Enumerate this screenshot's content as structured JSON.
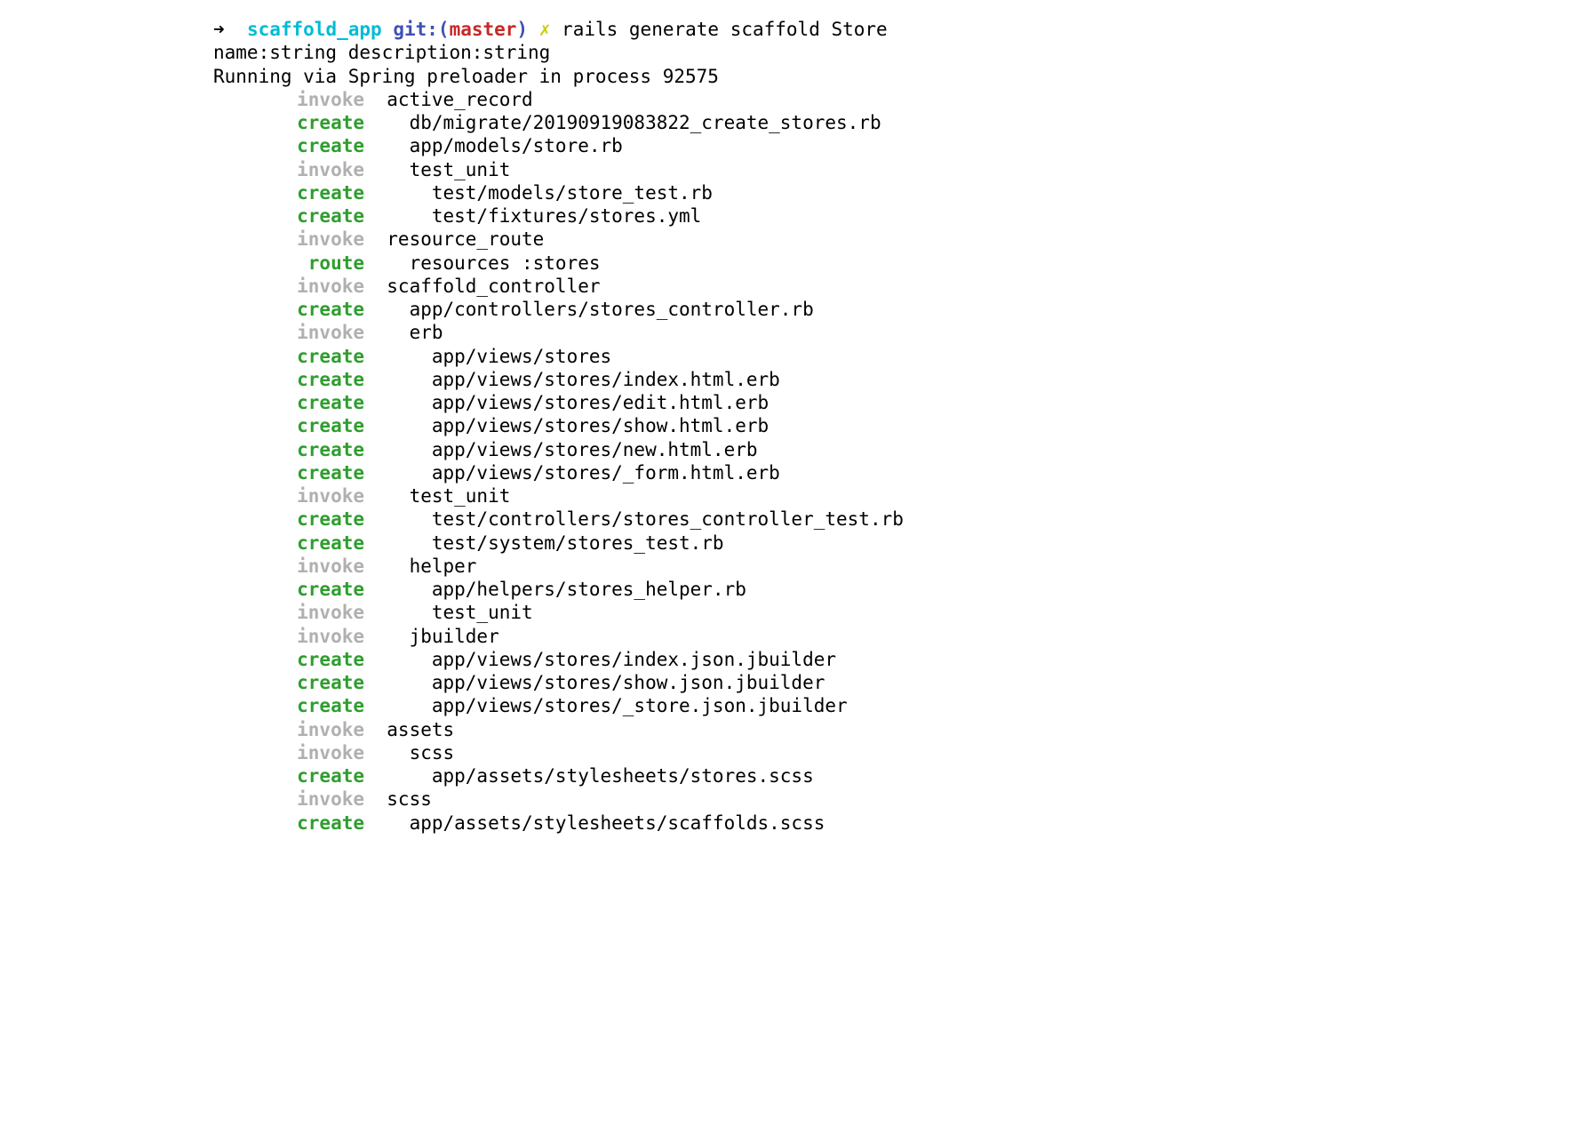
{
  "prompt": {
    "arrow": "➜",
    "app_name": "scaffold_app",
    "git_label": "git:",
    "paren_open": "(",
    "branch": "master",
    "paren_close": ")",
    "dirty_mark": "✗",
    "command_part1": "rails generate scaffold Store",
    "command_part2": "name:string description:string"
  },
  "running_line": "Running via Spring preloader in process 92575",
  "lines": [
    {
      "action": "invoke",
      "path": "  active_record"
    },
    {
      "action": "create",
      "path": "    db/migrate/20190919083822_create_stores.rb"
    },
    {
      "action": "create",
      "path": "    app/models/store.rb"
    },
    {
      "action": "invoke",
      "path": "    test_unit"
    },
    {
      "action": "create",
      "path": "      test/models/store_test.rb"
    },
    {
      "action": "create",
      "path": "      test/fixtures/stores.yml"
    },
    {
      "action": "invoke",
      "path": "  resource_route"
    },
    {
      "action": "route",
      "path": "    resources :stores"
    },
    {
      "action": "invoke",
      "path": "  scaffold_controller"
    },
    {
      "action": "create",
      "path": "    app/controllers/stores_controller.rb"
    },
    {
      "action": "invoke",
      "path": "    erb"
    },
    {
      "action": "create",
      "path": "      app/views/stores"
    },
    {
      "action": "create",
      "path": "      app/views/stores/index.html.erb"
    },
    {
      "action": "create",
      "path": "      app/views/stores/edit.html.erb"
    },
    {
      "action": "create",
      "path": "      app/views/stores/show.html.erb"
    },
    {
      "action": "create",
      "path": "      app/views/stores/new.html.erb"
    },
    {
      "action": "create",
      "path": "      app/views/stores/_form.html.erb"
    },
    {
      "action": "invoke",
      "path": "    test_unit"
    },
    {
      "action": "create",
      "path": "      test/controllers/stores_controller_test.rb"
    },
    {
      "action": "create",
      "path": "      test/system/stores_test.rb"
    },
    {
      "action": "invoke",
      "path": "    helper"
    },
    {
      "action": "create",
      "path": "      app/helpers/stores_helper.rb"
    },
    {
      "action": "invoke",
      "path": "      test_unit"
    },
    {
      "action": "invoke",
      "path": "    jbuilder"
    },
    {
      "action": "create",
      "path": "      app/views/stores/index.json.jbuilder"
    },
    {
      "action": "create",
      "path": "      app/views/stores/show.json.jbuilder"
    },
    {
      "action": "create",
      "path": "      app/views/stores/_store.json.jbuilder"
    },
    {
      "action": "invoke",
      "path": "  assets"
    },
    {
      "action": "invoke",
      "path": "    scss"
    },
    {
      "action": "create",
      "path": "      app/assets/stylesheets/stores.scss"
    },
    {
      "action": "invoke",
      "path": "  scss"
    },
    {
      "action": "create",
      "path": "    app/assets/stylesheets/scaffolds.scss"
    }
  ]
}
